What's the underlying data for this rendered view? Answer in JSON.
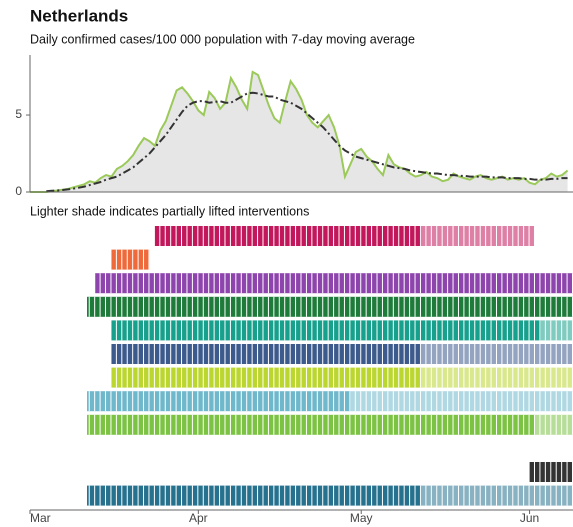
{
  "chart_data": [
    {
      "type": "line",
      "title": "Netherlands",
      "subtitle": "Daily confirmed cases/100 000 population with 7-day moving average",
      "x": [
        0,
        1,
        2,
        3,
        4,
        5,
        6,
        7,
        8,
        9,
        10,
        11,
        12,
        13,
        14,
        15,
        16,
        17,
        18,
        19,
        20,
        21,
        22,
        23,
        24,
        25,
        26,
        27,
        28,
        29,
        30,
        31,
        32,
        33,
        34,
        35,
        36,
        37,
        38,
        39,
        40,
        41,
        42,
        43,
        44,
        45,
        46,
        47,
        48,
        49,
        50,
        51,
        52,
        53,
        54,
        55,
        56,
        57,
        58,
        59,
        60,
        61,
        62,
        63,
        64,
        65,
        66,
        67,
        68,
        69,
        70,
        71,
        72,
        73,
        74,
        75,
        76,
        77,
        78,
        79,
        80,
        81,
        82,
        83,
        84,
        85,
        86,
        87,
        88,
        89,
        90,
        91,
        92,
        93,
        94,
        95,
        96,
        97,
        98,
        99
      ],
      "xlim": [
        0,
        100
      ],
      "ylim": [
        0,
        8.9
      ],
      "yticks": [
        0,
        5
      ],
      "series": [
        {
          "color": "#9bc95a",
          "fill": "#e6e6e6",
          "style": "solid",
          "values": [
            0,
            0,
            0,
            0,
            0.05,
            0.1,
            0.15,
            0.2,
            0.3,
            0.4,
            0.5,
            0.7,
            0.6,
            0.9,
            1.1,
            1.0,
            1.5,
            1.7,
            2.0,
            2.4,
            3.0,
            3.5,
            3.3,
            3.0,
            4.0,
            4.6,
            5.6,
            6.6,
            6.8,
            6.4,
            5.9,
            5.3,
            5.0,
            6.5,
            6.1,
            5.4,
            5.8,
            7.4,
            6.8,
            6.0,
            5.4,
            7.8,
            7.6,
            6.6,
            5.6,
            4.8,
            4.5,
            5.9,
            7.2,
            6.7,
            6.0,
            5.0,
            4.5,
            4.2,
            4.6,
            5.0,
            4.2,
            3.0,
            1.0,
            1.8,
            2.6,
            2.8,
            2.3,
            2.0,
            1.5,
            1.1,
            2.4,
            1.8,
            1.6,
            1.5,
            1.2,
            1.0,
            1.1,
            1.3,
            1.0,
            0.9,
            0.7,
            0.8,
            1.2,
            1.0,
            0.9,
            0.8,
            1.0,
            1.1,
            0.9,
            0.8,
            0.9,
            1.0,
            0.8,
            0.9,
            0.8,
            0.9,
            0.6,
            0.5,
            0.8,
            0.9,
            1.2,
            1.0,
            1.1,
            1.4
          ]
        },
        {
          "color": "#333333",
          "style": "dashdot",
          "values": [
            null,
            null,
            null,
            0.05,
            0.08,
            0.1,
            0.13,
            0.17,
            0.22,
            0.28,
            0.35,
            0.45,
            0.55,
            0.65,
            0.8,
            0.9,
            1.0,
            1.2,
            1.4,
            1.6,
            1.9,
            2.2,
            2.5,
            2.9,
            3.3,
            3.7,
            4.2,
            4.7,
            5.2,
            5.6,
            5.8,
            5.9,
            5.9,
            5.8,
            5.85,
            5.9,
            5.8,
            5.8,
            6.0,
            6.2,
            6.4,
            6.45,
            6.4,
            6.3,
            6.2,
            6.2,
            6.0,
            5.9,
            5.8,
            5.6,
            5.4,
            5.1,
            4.8,
            4.5,
            4.2,
            3.8,
            3.4,
            3.0,
            2.7,
            2.5,
            2.3,
            2.2,
            2.1,
            2.0,
            1.9,
            1.8,
            1.7,
            1.6,
            1.55,
            1.5,
            1.4,
            1.35,
            1.3,
            1.25,
            1.2,
            1.2,
            1.15,
            1.1,
            1.1,
            1.05,
            1.05,
            1.0,
            1.0,
            1.0,
            1.0,
            0.95,
            0.95,
            0.95,
            0.9,
            0.9,
            0.9,
            0.85,
            0.85,
            0.8,
            0.8,
            0.8,
            0.85,
            0.85,
            0.9,
            0.9
          ]
        }
      ]
    },
    {
      "type": "timeline",
      "title": "Lighter shade indicates partially lifted interventions",
      "xlim": [
        0,
        100
      ],
      "xticks": [
        {
          "value": 0,
          "label": "Mar"
        },
        {
          "value": 31,
          "label": "Apr"
        },
        {
          "value": 61,
          "label": "May"
        },
        {
          "value": 92,
          "label": "Jun"
        }
      ],
      "interventions": [
        {
          "start": 23,
          "lifted": 72,
          "end": 93,
          "color": "#c2185b"
        },
        {
          "start": 15,
          "lifted": null,
          "end": 22,
          "color": "#ef6a3a"
        },
        {
          "start": 12,
          "lifted": null,
          "end": 100,
          "color": "#8e44ad"
        },
        {
          "start": 10.5,
          "lifted": null,
          "end": 100,
          "color": "#1e7b3a"
        },
        {
          "start": 15,
          "lifted": 94,
          "end": 100,
          "color": "#17a08c"
        },
        {
          "start": 15,
          "lifted": 72,
          "end": 100,
          "color": "#3d5a8c"
        },
        {
          "start": 15,
          "lifted": 72,
          "end": 100,
          "color": "#bcd630"
        },
        {
          "start": 10.5,
          "lifted": 59,
          "end": 100,
          "color": "#6fb8cc"
        },
        {
          "start": 10.5,
          "lifted": 93,
          "end": 100,
          "color": "#7cc243"
        },
        {
          "start": 92,
          "lifted": null,
          "end": 100,
          "color": "#333333"
        },
        {
          "start": 10.5,
          "lifted": 72,
          "end": 100,
          "color": "#26718e"
        }
      ]
    }
  ]
}
